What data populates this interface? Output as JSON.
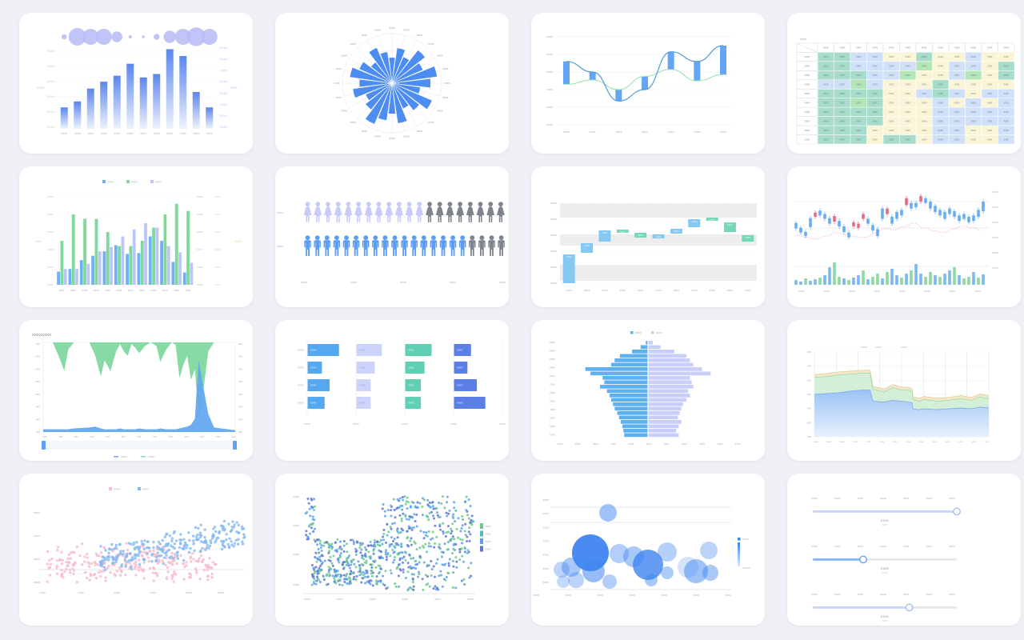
{
  "page": {
    "background": "#eef0f5",
    "card_background": "#ffffff"
  },
  "chart_data": [
    {
      "id": "bar-bubble",
      "type": "bar",
      "categories": {
        "text": "XXXX",
        "count": 12
      },
      "values": [
        25,
        32,
        47,
        55,
        62,
        76,
        60,
        64,
        93,
        85,
        43,
        25
      ],
      "bubble_radii": [
        3.3,
        11,
        10,
        10,
        6.7,
        2,
        1.7,
        3.7,
        7.7,
        10,
        11.7,
        10
      ],
      "left_axis": {
        "ticks": {
          "text": "XXXX",
          "count": 6
        },
        "name": "XXXX",
        "color": "#a9d3ae"
      },
      "right_axis": {
        "ticks": {
          "text": "XXXX",
          "count": 8
        },
        "name": "XXXX",
        "color": "#a9c2f0"
      },
      "bar_color_top": "#5c86ec",
      "bar_color_bottom": "#eef3fd",
      "bubble_color": "#b9bef5"
    },
    {
      "id": "polar-rose",
      "type": "bar",
      "values": [
        52,
        72,
        58,
        85,
        68,
        92,
        78,
        58,
        88,
        70,
        56,
        82,
        62,
        76,
        90,
        68,
        58,
        80,
        66,
        86,
        72,
        54,
        78,
        64
      ],
      "labels": {
        "text": "XXXX",
        "count": 24
      },
      "bar_color": "#4d8cf0",
      "grid_color": "#e6e6e6"
    },
    {
      "id": "diff-chart",
      "type": "line",
      "categories": {
        "text": "XXXX",
        "count": 7
      },
      "y_ticks": {
        "text": "XXXX",
        "count": 6
      },
      "series": [
        {
          "name": "blue-line",
          "color": "#4f9fd6",
          "values": [
            72,
            60,
            27,
            40,
            83,
            72,
            90
          ]
        },
        {
          "name": "green-line",
          "color": "#9adfa8",
          "values": [
            46,
            51,
            40,
            55,
            63,
            50,
            57
          ]
        }
      ],
      "bar_color": "#5da0f2"
    },
    {
      "id": "heatmap",
      "type": "heatmap",
      "corner_label": "XXXX",
      "cell_text": "XXXX",
      "col_headers": {
        "text": "XXXX",
        "count": 12
      },
      "row_headers": {
        "text": "XXXX",
        "count": 10
      },
      "palette": {
        "b": "#cfe0f8",
        "t": "#a7dccb",
        "g": "#b3e5b6",
        "y": "#fbf5d8"
      },
      "rows": [
        "ttbbyytyybyy",
        "ttbbbbgybbyt",
        "tttbbgyybgyt",
        "bbgbyyytyyyy",
        "ttttyybtbybb",
        "ttgtyyybybyb",
        "ttttyyybbbbb",
        "ttttyyybbbbb",
        "tttyyyybbyyb",
        "tttyttybbyyb"
      ]
    },
    {
      "id": "grouped-bar",
      "type": "bar",
      "categories": {
        "text": "XXXX",
        "count": 12
      },
      "legend": [
        {
          "label": "XXXX",
          "color": "#6db2f5"
        },
        {
          "label": "XXXX",
          "color": "#7fd99a"
        },
        {
          "label": "XXXX",
          "color": "#bdc5f8"
        }
      ],
      "series": [
        {
          "color": "#6db2f5",
          "values": [
            15,
            18,
            28,
            33,
            38,
            45,
            35,
            36,
            55,
            50,
            26,
            14
          ]
        },
        {
          "color": "#7fd99a",
          "values": [
            50,
            80,
            75,
            75,
            60,
            44,
            44,
            50,
            65,
            80,
            92,
            84
          ]
        },
        {
          "color": "#bdc5f8",
          "values": [
            18,
            18,
            24,
            38,
            43,
            55,
            63,
            70,
            65,
            44,
            37,
            25
          ]
        }
      ],
      "left_axis": {
        "ticks": {
          "text": "XXXX",
          "count": 6
        },
        "color": "#9fc4f2",
        "name": "XXXX",
        "name_color": "#b9c4f0"
      },
      "right_axis": {
        "ticks": {
          "text": "XXXX",
          "count": 6
        },
        "color": "#93d6a0"
      },
      "right_axis2": {
        "ticks": {
          "text": "XXXX",
          "count": 6
        },
        "color": "#e4cf8e",
        "name": "XXXX"
      }
    },
    {
      "id": "pictogram",
      "type": "pictogram",
      "x_ticks": {
        "text": "XXXX",
        "count": 5
      },
      "rows": [
        {
          "label": "XXXX",
          "icon": "female",
          "total": 20,
          "filled": 12,
          "filled_color": "#c6cbf9",
          "rest_color": "#7e838d"
        },
        {
          "label": "XXXX",
          "icon": "male",
          "total": 21,
          "filled": 17,
          "filled_color": "#5b9cf4",
          "rest_color": "#7e838d"
        }
      ]
    },
    {
      "id": "waterfall",
      "type": "waterfall",
      "categories": {
        "text": "XXXX",
        "count": 11
      },
      "y_ticks": {
        "text": "XXXX",
        "count": 6
      },
      "bar_label": "XXXX",
      "band_color": "#ededed",
      "value_bands": [
        [
          82,
          100
        ],
        [
          47,
          61
        ],
        [
          3,
          23
        ]
      ],
      "colors": {
        "u": "#85c9f2",
        "d": "#74d9b5"
      },
      "bars": [
        {
          "from": 0,
          "to": 36,
          "c": "u"
        },
        {
          "from": 38,
          "to": 50,
          "c": "u"
        },
        {
          "from": 52,
          "to": 66,
          "c": "u"
        },
        {
          "from": 63,
          "to": 67,
          "c": "d"
        },
        {
          "from": 57,
          "to": 63,
          "c": "d"
        },
        {
          "from": 56,
          "to": 61,
          "c": "u"
        },
        {
          "from": 62,
          "to": 68,
          "c": "u"
        },
        {
          "from": 70,
          "to": 80,
          "c": "u"
        },
        {
          "from": 78,
          "to": 82,
          "c": "d"
        },
        {
          "from": 64,
          "to": 76,
          "c": "d"
        },
        {
          "from": 52,
          "to": 60,
          "c": "d"
        }
      ]
    },
    {
      "id": "candlestick",
      "type": "candlestick",
      "y_ticks": {
        "text": "XXXX",
        "count": 6
      },
      "x_ticks": {
        "text": "XXXX",
        "count": 8
      },
      "candles": [
        [
          40,
          48,
          "u"
        ],
        [
          34,
          41,
          "u"
        ],
        [
          29,
          35,
          "u"
        ],
        [
          42,
          55,
          "u"
        ],
        [
          57,
          63,
          "d"
        ],
        [
          59,
          66,
          "u"
        ],
        [
          54,
          61,
          "u"
        ],
        [
          47,
          55,
          "u"
        ],
        [
          50,
          58,
          "d"
        ],
        [
          43,
          51,
          "u"
        ],
        [
          35,
          43,
          "u"
        ],
        [
          27,
          34,
          "u"
        ],
        [
          43,
          49,
          "d"
        ],
        [
          41,
          47,
          "d"
        ],
        [
          54,
          61,
          "d"
        ],
        [
          47,
          54,
          "u"
        ],
        [
          37,
          45,
          "u"
        ],
        [
          29,
          39,
          "u"
        ],
        [
          54,
          69,
          "u"
        ],
        [
          61,
          69,
          "d"
        ],
        [
          47,
          57,
          "u"
        ],
        [
          54,
          64,
          "u"
        ],
        [
          59,
          67,
          "u"
        ],
        [
          74,
          84,
          "d"
        ],
        [
          69,
          77,
          "u"
        ],
        [
          71,
          77,
          "u"
        ],
        [
          79,
          87,
          "d"
        ],
        [
          77,
          84,
          "u"
        ],
        [
          69,
          79,
          "u"
        ],
        [
          64,
          73,
          "u"
        ],
        [
          59,
          67,
          "u"
        ],
        [
          54,
          64,
          "u"
        ],
        [
          61,
          69,
          "u"
        ],
        [
          57,
          65,
          "u"
        ],
        [
          51,
          59,
          "u"
        ],
        [
          54,
          61,
          "u"
        ],
        [
          49,
          57,
          "u"
        ],
        [
          51,
          59,
          "u"
        ],
        [
          57,
          67,
          "u"
        ],
        [
          65,
          79,
          "u"
        ]
      ],
      "volumes": [
        6,
        4,
        8,
        5,
        7,
        9,
        12,
        22,
        28,
        10,
        8,
        6,
        9,
        12,
        18,
        7,
        10,
        14,
        8,
        16,
        20,
        12,
        9,
        14,
        18,
        26,
        14,
        10,
        16,
        12,
        10,
        14,
        18,
        22,
        12,
        8,
        10,
        16,
        9,
        13
      ],
      "volume_colors": "bbgbbgbbggbgbbgbggbgbbgbgbbggbgbbgbggbgb",
      "ma": [
        30,
        27,
        25,
        29,
        34,
        31,
        28,
        27,
        33,
        40,
        38,
        43,
        48,
        41,
        37,
        34,
        39,
        44,
        41,
        37
      ],
      "colors": {
        "u": "#68acf4",
        "d": "#e76a84",
        "vol_g": "#8fd9a0",
        "vol_b": "#7db8f0",
        "ma": "#f2aec0"
      }
    },
    {
      "id": "flow-area",
      "type": "area",
      "title": "XXXXXXXX",
      "x": [
        0,
        0.05,
        0.08,
        0.11,
        0.13,
        0.16,
        0.24,
        0.27,
        0.3,
        0.32,
        0.35,
        0.38,
        0.4,
        0.42,
        0.44,
        0.46,
        0.48,
        0.5,
        0.53,
        0.56,
        0.59,
        0.61,
        0.64,
        0.67,
        0.69,
        0.71,
        0.73,
        0.75,
        0.77,
        0.79,
        0.81,
        0.83,
        0.86,
        0.89,
        1
      ],
      "green_depth": [
        0,
        0,
        0.15,
        0.32,
        0.08,
        0,
        0,
        0.14,
        0.38,
        0.2,
        0.32,
        0.1,
        0.02,
        0.1,
        0.15,
        0.02,
        0.06,
        0.12,
        0.04,
        0,
        0.04,
        0.22,
        0.08,
        0,
        0.03,
        0.4,
        0.25,
        0.15,
        0.42,
        0.3,
        0.85,
        0.6,
        0.1,
        0,
        0
      ],
      "blue_height": [
        0.03,
        0.03,
        0.03,
        0.03,
        0.03,
        0.04,
        0.05,
        0.06,
        0.04,
        0.03,
        0.03,
        0.03,
        0.04,
        0.03,
        0.03,
        0.03,
        0.03,
        0.04,
        0.03,
        0.03,
        0.03,
        0.04,
        0.03,
        0.03,
        0.03,
        0.04,
        0.05,
        0.06,
        0.08,
        0.15,
        0.8,
        0.55,
        0.2,
        0.05,
        0.02
      ],
      "left_ticks": {
        "text": "XXX",
        "count": 8
      },
      "right_ticks": {
        "text": "XXX",
        "count": 8
      },
      "x_ticks": {
        "text": "XXX",
        "count": 13
      },
      "legend": [
        {
          "label": "XXXX",
          "color": "#64a8ef"
        },
        {
          "label": "XXXX",
          "color": "#82d89f"
        }
      ],
      "colors": {
        "green": "#82d89f",
        "blue": "#64a8ef"
      }
    },
    {
      "id": "hbar-panels",
      "type": "bar",
      "row_labels": {
        "text": "XXXX",
        "count": 4
      },
      "x_ticks": {
        "text": "XXXX",
        "count": 5
      },
      "bar_label": "XXXX",
      "panels": [
        {
          "color": "#54a8f0",
          "label_color": "#ffffff",
          "values": [
            0.7,
            0.32,
            0.49,
            0.38
          ]
        },
        {
          "color": "#ccd4fb",
          "label_color": "#8d97de",
          "values": [
            0.57,
            0.41,
            0.32,
            0.32
          ]
        },
        {
          "color": "#5fd0b4",
          "label_color": "#ffffff",
          "values": [
            0.59,
            0.43,
            0.35,
            0.35
          ]
        },
        {
          "color": "#5c7fe6",
          "label_color": "#ffffff",
          "values": [
            0.38,
            0.3,
            0.51,
            0.7
          ]
        }
      ]
    },
    {
      "id": "pyramid",
      "type": "bar",
      "legend": [
        {
          "label": "XXXX",
          "color": "#5fb0ee"
        },
        {
          "label": "XXXX",
          "color": "#c9cffa"
        }
      ],
      "left": [
        0.02,
        0.08,
        0.18,
        0.32,
        0.38,
        0.42,
        0.72,
        0.66,
        0.52,
        0.5,
        0.55,
        0.47,
        0.44,
        0.42,
        0.4,
        0.38,
        0.35,
        0.33,
        0.31,
        0.29,
        0.28,
        0.27
      ],
      "right": [
        0.05,
        0.14,
        0.3,
        0.44,
        0.48,
        0.52,
        0.62,
        0.72,
        0.48,
        0.5,
        0.52,
        0.46,
        0.48,
        0.44,
        0.4,
        0.38,
        0.36,
        0.34,
        0.38,
        0.35,
        0.32,
        0.35
      ],
      "y_ticks": {
        "text": "XXXX",
        "count": 12
      },
      "x_ticks": {
        "text": "XXXX",
        "count": 11
      }
    },
    {
      "id": "stacked-area",
      "type": "area",
      "x": [
        0,
        0.07,
        0.14,
        0.21,
        0.27,
        0.32,
        0.335,
        0.4,
        0.45,
        0.5,
        0.54,
        0.56,
        0.565,
        0.6,
        0.63,
        0.7,
        0.77,
        0.84,
        0.9,
        0.95,
        1
      ],
      "blue_top": [
        0.5,
        0.51,
        0.52,
        0.54,
        0.55,
        0.55,
        0.42,
        0.41,
        0.43,
        0.42,
        0.41,
        0.4,
        0.33,
        0.32,
        0.33,
        0.32,
        0.33,
        0.34,
        0.33,
        0.35,
        0.34
      ],
      "green_add": [
        0.2,
        0.2,
        0.21,
        0.2,
        0.2,
        0.2,
        0.14,
        0.12,
        0.15,
        0.13,
        0.14,
        0.13,
        0.11,
        0.1,
        0.11,
        0.1,
        0.1,
        0.11,
        0.1,
        0.12,
        0.11
      ],
      "tan_add": 0.035,
      "y_ticks": {
        "text": "XXX",
        "count": 7
      },
      "x_ticks": {
        "text": "XXXX",
        "count": 14
      },
      "top_labels": {
        "text": "XXXX",
        "count": 3
      },
      "colors": {
        "blue_top_line": "#7aaaf0",
        "blue_fill_top": "#9cc3f5",
        "blue_fill_bottom": "#e7f1fd",
        "green_fill": "#d3efd8",
        "green_line": "#98d8a4",
        "tan_fill": "#f2e7c8",
        "tan_line": "#dfca9a"
      }
    },
    {
      "id": "scatter-duo",
      "type": "scatter",
      "y_ticks": {
        "text": "XXXX",
        "count": 4
      },
      "x_ticks": {
        "text": "XXXX",
        "count": 6
      },
      "legend": [
        {
          "label": "XXXX",
          "color": "#f6bcca"
        },
        {
          "label": "XXXX",
          "color": "#85b9f2"
        }
      ],
      "series": [
        {
          "name": "pink",
          "color": "#f6bcca",
          "n": 260,
          "seed": 11
        },
        {
          "name": "blue",
          "color": "#85b9f2",
          "n": 280,
          "seed": 23
        }
      ]
    },
    {
      "id": "scatter-dense",
      "type": "scatter",
      "y_ticks": {
        "text": "XXXX",
        "count": 4
      },
      "x_ticks": {
        "text": "XXXX",
        "count": 6
      },
      "n": 760,
      "seed": 5,
      "legend": [
        {
          "label": "XXXX",
          "color": "#6cc98a"
        },
        {
          "label": "XXXX",
          "color": "#54b8c4"
        },
        {
          "label": "XXXX",
          "color": "#5ba1ee"
        },
        {
          "label": "XXXX",
          "color": "#5f74d8"
        }
      ]
    },
    {
      "id": "bubble",
      "type": "bubble",
      "y_ticks": {
        "text": "XXXX",
        "count": 7
      },
      "x_ticks": {
        "text": "XXXX",
        "count": 7
      },
      "legend": {
        "top_label": "XXXX",
        "bottom_label": "XXXXX",
        "color": "#3f85f0"
      },
      "bubbles": [
        [
          38,
          120,
          10,
          0.35
        ],
        [
          40,
          135,
          8,
          0.3
        ],
        [
          50,
          117,
          12,
          0.45
        ],
        [
          56,
          133,
          10,
          0.35
        ],
        [
          74,
          99,
          23,
          0.95
        ],
        [
          78,
          122,
          14,
          0.55
        ],
        [
          98,
          135,
          9,
          0.4
        ],
        [
          110,
          100,
          12,
          0.4
        ],
        [
          96,
          49,
          11,
          0.5
        ],
        [
          128,
          104,
          13,
          0.45
        ],
        [
          146,
          114,
          19,
          0.8
        ],
        [
          150,
          133,
          8,
          0.45
        ],
        [
          170,
          98,
          12,
          0.38
        ],
        [
          170,
          124,
          8,
          0.42
        ],
        [
          196,
          117,
          13,
          0.22
        ],
        [
          206,
          122,
          15,
          0.5
        ],
        [
          222,
          96,
          11,
          0.35
        ],
        [
          224,
          124,
          10,
          0.45
        ]
      ]
    },
    {
      "id": "sliders",
      "type": "sliders",
      "track_color": "#e4e6ea",
      "sliders": [
        {
          "ticks": {
            "text": "XXXX",
            "count": 7
          },
          "value": 1.0,
          "fill": "#c7d6fa",
          "handle_border": "#a9bdf2",
          "caption": "XXXX",
          "subcaption": "XXXX"
        },
        {
          "ticks": {
            "text": "XXXX",
            "count": 7
          },
          "value": 0.35,
          "fill": "#82b4f6",
          "handle_border": "#6aa3f2",
          "caption": "XXXX",
          "subcaption": "XXXX"
        },
        {
          "ticks": {
            "text": "XXXX",
            "count": 7
          },
          "value": 0.67,
          "fill": "#c7d6fa",
          "handle_border": "#a9bdf2",
          "caption": "XXXX",
          "subcaption": "XXXX"
        }
      ]
    }
  ]
}
